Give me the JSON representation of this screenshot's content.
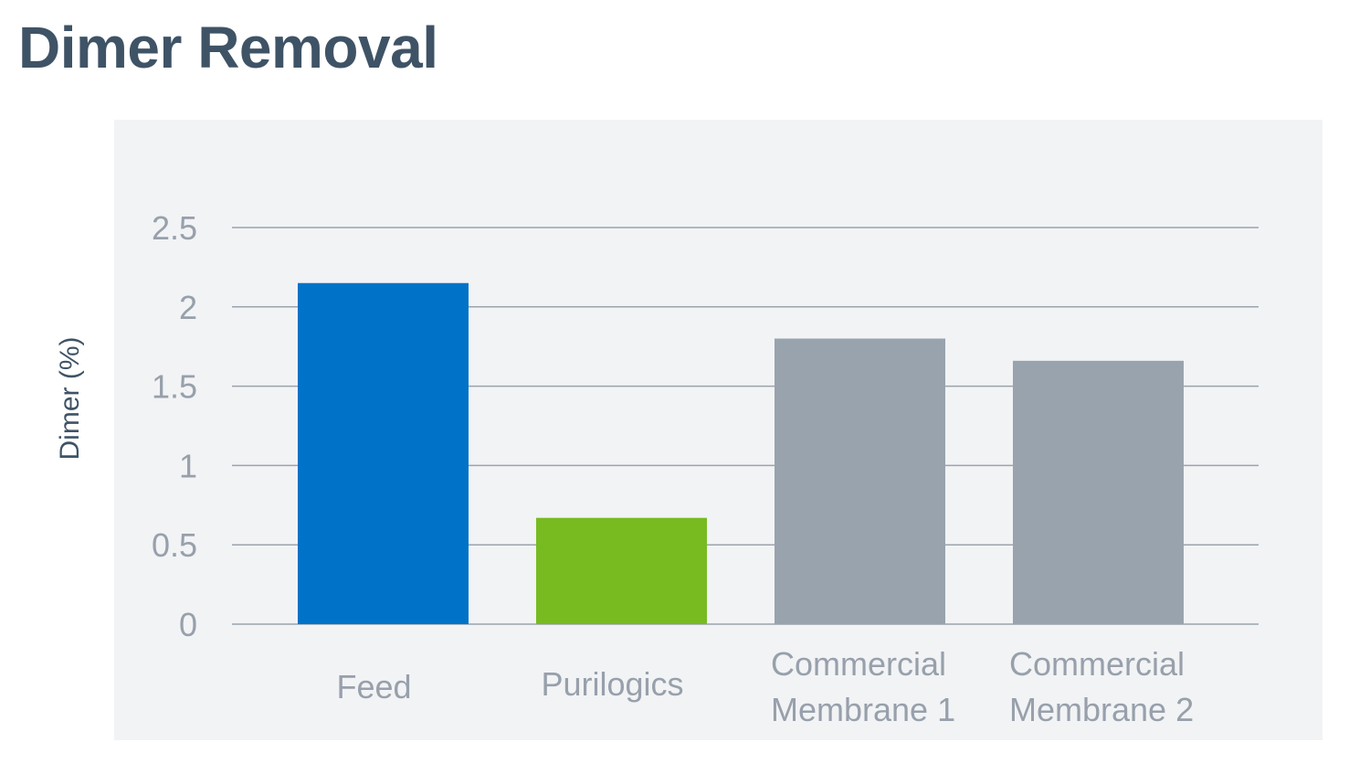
{
  "page": {
    "title": "Dimer Removal"
  },
  "chart_data": {
    "type": "bar",
    "title": "Dimer Removal",
    "xlabel": "",
    "ylabel": "Dimer (%)",
    "ylim": [
      0,
      2.5
    ],
    "yticks": [
      "0",
      "0.5",
      "1",
      "1.5",
      "2",
      "2.5"
    ],
    "grid": true,
    "categories": [
      [
        "Feed"
      ],
      [
        "Purilogics"
      ],
      [
        "Commercial",
        "Membrane 1"
      ],
      [
        "Commercial",
        "Membrane 2"
      ]
    ],
    "values": [
      2.15,
      0.67,
      1.8,
      1.66
    ],
    "colors": [
      "#0073c8",
      "#78bb21",
      "#98a3ae",
      "#98a3ae"
    ],
    "colors_meta": {
      "background": "#f2f3f5",
      "gridline": "#9aa3ac",
      "tick_text": "#97a0ab",
      "title_text": "#3f5366"
    }
  }
}
